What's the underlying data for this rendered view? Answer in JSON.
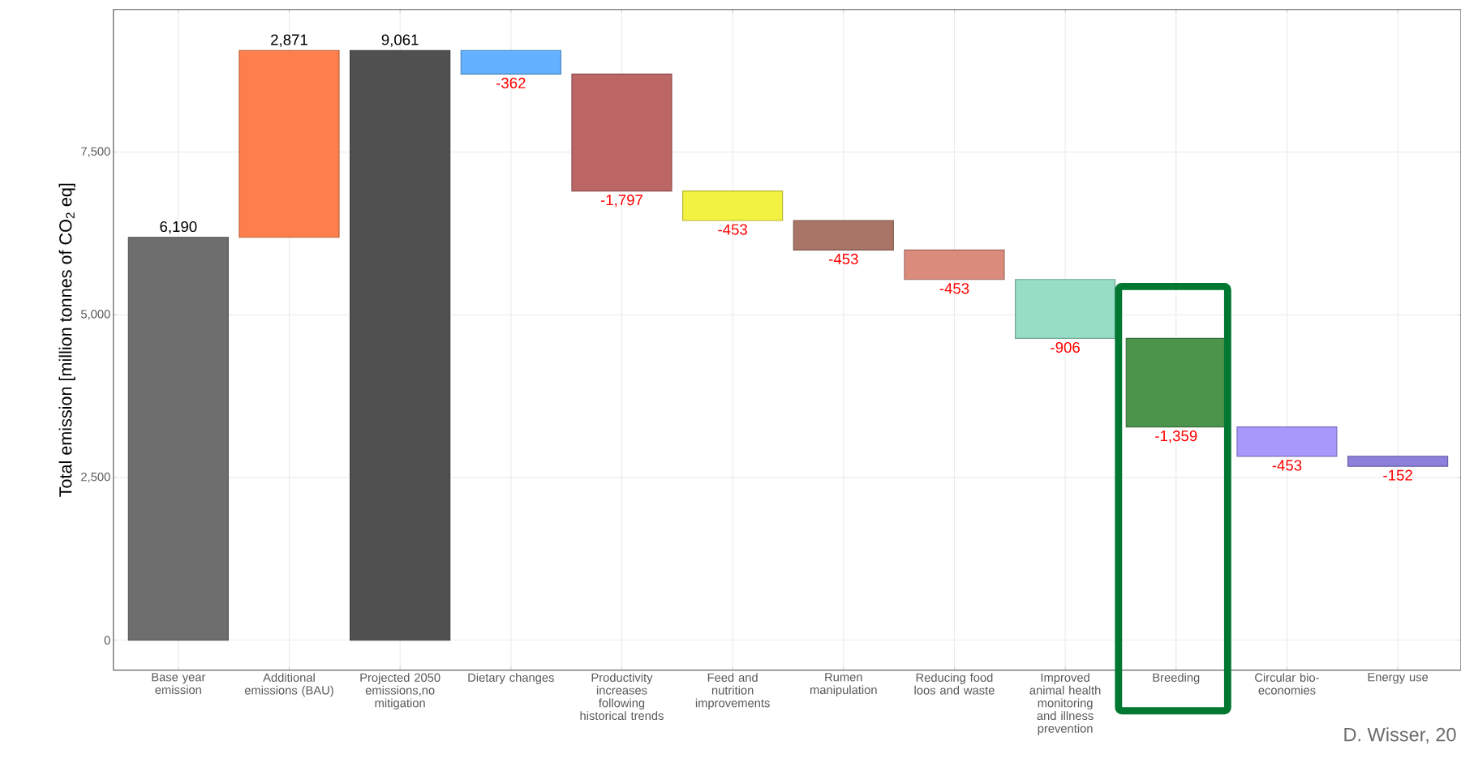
{
  "chart_data": {
    "type": "bar",
    "ylabel": "Total emission [million tonnes of  CO$_{2}$ eq]",
    "categories": [
      "Base year emission",
      "Additional emissions (BAU)",
      "Projected 2050 emissions,no mitigation",
      "Dietary changes",
      "Productivity increases following historical trends",
      "Feed and nutrition improvements",
      "Rumen manipulation",
      "Reducing food loos and waste",
      "Improved animal health monitoring and illness prevention",
      "Breeding",
      "Circular bio-economies",
      "Energy use"
    ],
    "values": [
      6190,
      2871,
      9061,
      -362,
      -1797,
      -453,
      -453,
      -453,
      -906,
      -1359,
      -453,
      -152
    ],
    "base": [
      0,
      6190,
      0,
      9061,
      8699,
      6902,
      6449,
      5996,
      5543,
      4637,
      3278,
      2825
    ],
    "value_labels": [
      "6,190",
      "2,871",
      "9,061",
      "-362",
      "-1,797",
      "-453",
      "-453",
      "-453",
      "-906",
      "-1,359",
      "-453",
      "-152"
    ],
    "colors": [
      "#6e6e6e",
      "#fd7f4b",
      "#505050",
      "#63b1ff",
      "#bc6665",
      "#f2f242",
      "#a97566",
      "#da8b7c",
      "#97dcc4",
      "#4c944c",
      "#a898fc",
      "#8c80dc"
    ],
    "ylim": [
      -460,
      9690
    ],
    "yticks": [
      0,
      {
        "value": 2500,
        "label": "2,500"
      },
      {
        "value": 5000,
        "label": "5,000"
      },
      {
        "value": 7500,
        "label": "7,500"
      }
    ],
    "grid": true,
    "annotations": [
      "D. Wisser, 20"
    ]
  }
}
